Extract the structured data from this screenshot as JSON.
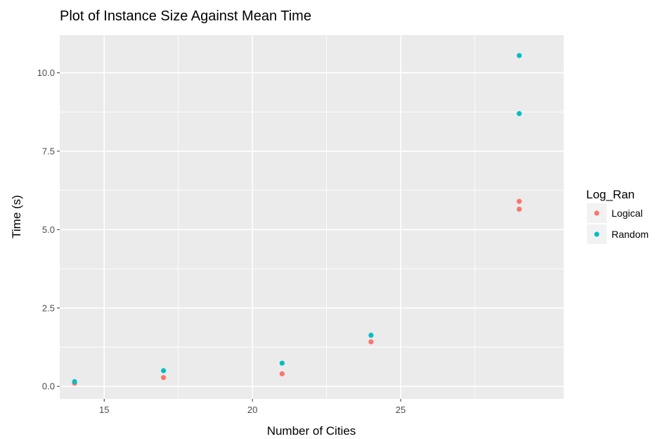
{
  "chart_data": {
    "type": "scatter",
    "title": "Plot of Instance Size Against Mean Time",
    "xlabel": "Number of Cities",
    "ylabel": "Time (s)",
    "xlim": [
      13.5,
      30.5
    ],
    "ylim": [
      -0.4,
      11.2
    ],
    "x_ticks": [
      15,
      20,
      25
    ],
    "x_tick_labels": [
      "15",
      "20",
      "25"
    ],
    "y_ticks": [
      0,
      2.5,
      5,
      7.5,
      10
    ],
    "y_tick_labels": [
      "0.0",
      "2.5",
      "5.0",
      "7.5",
      "10.0"
    ],
    "grid": true,
    "panel_background": "#ebebeb",
    "legend": {
      "title": "Log_Ran",
      "placement": "right"
    },
    "series": [
      {
        "name": "Logical",
        "color": "#f8766d",
        "points": [
          {
            "x": 14,
            "y": 0.1
          },
          {
            "x": 17,
            "y": 0.28
          },
          {
            "x": 21,
            "y": 0.4
          },
          {
            "x": 24,
            "y": 1.42
          },
          {
            "x": 29,
            "y": 5.65
          },
          {
            "x": 29,
            "y": 5.9
          }
        ]
      },
      {
        "name": "Random",
        "color": "#00bfc4",
        "points": [
          {
            "x": 14,
            "y": 0.15
          },
          {
            "x": 17,
            "y": 0.5
          },
          {
            "x": 21,
            "y": 0.74
          },
          {
            "x": 24,
            "y": 1.63
          },
          {
            "x": 29,
            "y": 8.7
          },
          {
            "x": 29,
            "y": 10.55
          }
        ]
      }
    ]
  }
}
